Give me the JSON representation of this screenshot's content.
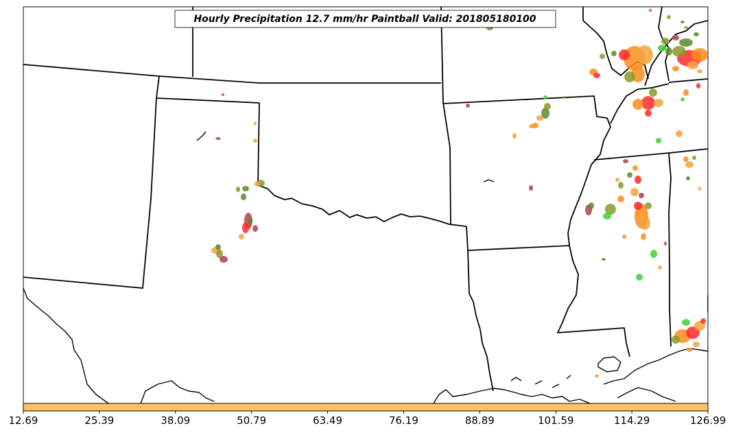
{
  "title": "Hourly Precipitation 12.7 mm/hr Paintball Valid: 201805180100",
  "colorbar": {
    "color": "#ffc266",
    "ticks": [
      "12.69",
      "25.39",
      "38.09",
      "50.79",
      "63.49",
      "76.19",
      "88.89",
      "101.59",
      "114.29",
      "126.99"
    ]
  },
  "paintball_colors": [
    "#ff2a2a",
    "#ff8c1a",
    "#f2a43a",
    "#8a9a2a",
    "#5a8a2a",
    "#3ad13a",
    "#b04050"
  ]
}
